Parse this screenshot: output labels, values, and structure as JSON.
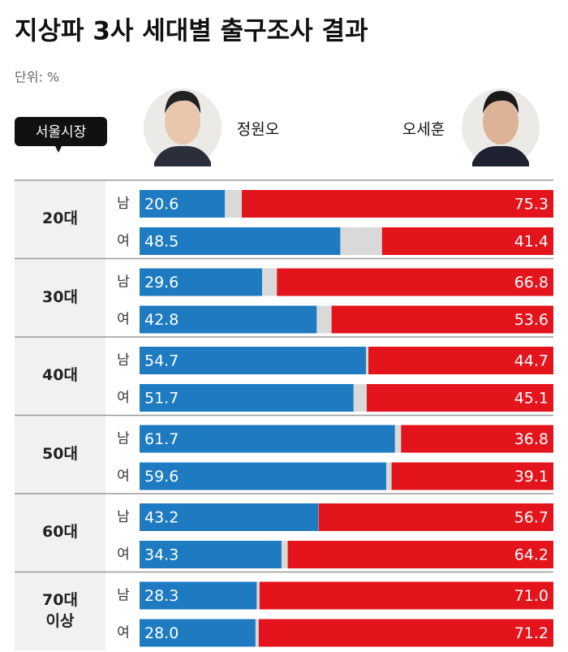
{
  "chart_data": {
    "type": "diverging-bar",
    "title": "지상파 3사 세대별 출구조사 결과",
    "subtitle": "단위: %",
    "badge": "서울시장",
    "groups": [
      "20대",
      "30대",
      "40대",
      "50대",
      "60대",
      "70대 이상"
    ],
    "categories": [
      "남",
      "여",
      "남",
      "여",
      "남",
      "여",
      "남",
      "여",
      "남",
      "여",
      "남",
      "여"
    ],
    "xlim": [
      0,
      100
    ],
    "gap_color": "#d9d9d9",
    "series": [
      {
        "name": "정원오",
        "color": "#1f7bc1",
        "values": [
          20.6,
          48.5,
          29.6,
          42.8,
          54.7,
          51.7,
          61.7,
          59.6,
          43.2,
          34.3,
          28.3,
          28.0
        ],
        "value_labels": [
          "20.6",
          "48.5",
          "29.6",
          "42.8",
          "54.7",
          "51.7",
          "61.7",
          "59.6",
          "43.2",
          "34.3",
          "28.3",
          "28.0"
        ]
      },
      {
        "name": "오세훈",
        "color": "#e3141b",
        "values": [
          75.3,
          41.4,
          66.8,
          53.6,
          44.7,
          45.1,
          36.8,
          39.1,
          56.7,
          64.2,
          71.0,
          71.2
        ],
        "value_labels": [
          "75.3",
          "41.4",
          "66.8",
          "53.6",
          "44.7",
          "45.1",
          "36.8",
          "39.1",
          "56.7",
          "64.2",
          "71.0",
          "71.2"
        ]
      }
    ]
  }
}
